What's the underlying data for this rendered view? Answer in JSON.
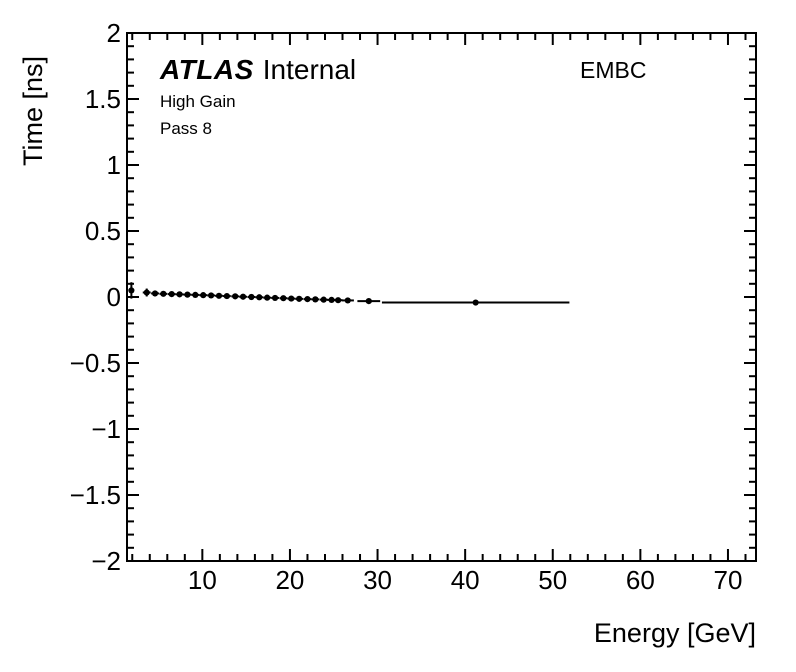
{
  "annotations": {
    "experiment": "ATLAS",
    "status": "Internal",
    "line1": "High Gain",
    "line2": "Pass 8",
    "detector_region": "EMBC"
  },
  "colors": {
    "foreground": "#000000",
    "background": "#ffffff"
  },
  "chart_data": {
    "type": "scatter",
    "title": "",
    "xlabel": "Energy [GeV]",
    "ylabel": "Time [ns]",
    "xlim": [
      1.4,
      73.2
    ],
    "ylim": [
      -2,
      2
    ],
    "grid": false,
    "legend": "none",
    "x_major_ticks": [
      10,
      20,
      30,
      40,
      50,
      60,
      70
    ],
    "x_major_tick_labels": [
      "10",
      "20",
      "30",
      "40",
      "50",
      "60",
      "70"
    ],
    "x_minor_step": 2,
    "y_major_ticks": [
      2,
      1.5,
      1,
      0.5,
      0,
      -0.5,
      -1,
      -1.5,
      -2
    ],
    "y_major_tick_labels": [
      "2",
      "1.5",
      "1",
      "0.5",
      "0",
      "−0.5",
      "−1",
      "−1.5",
      "−2"
    ],
    "y_minor_step": 0.1,
    "series": [
      {
        "name": "mean-time-vs-energy",
        "marker": "filled-circle",
        "color": "#000000",
        "points": [
          {
            "e": 1.9,
            "t": 0.05,
            "exl": 0.25,
            "exh": 0.25,
            "ey": 0.062
          },
          {
            "e": 3.65,
            "t": 0.034,
            "exl": 0.45,
            "exh": 0.45,
            "ey": 0.03
          },
          {
            "e": 4.6,
            "t": 0.027,
            "exl": 0.45,
            "exh": 0.45,
            "ey": 0.022
          },
          {
            "e": 5.55,
            "t": 0.024,
            "exl": 0.45,
            "exh": 0.45,
            "ey": 0.02
          },
          {
            "e": 6.5,
            "t": 0.022,
            "exl": 0.45,
            "exh": 0.45,
            "ey": 0.018
          },
          {
            "e": 7.4,
            "t": 0.02,
            "exl": 0.45,
            "exh": 0.45,
            "ey": 0.018
          },
          {
            "e": 8.3,
            "t": 0.018,
            "exl": 0.45,
            "exh": 0.45,
            "ey": 0.016
          },
          {
            "e": 9.2,
            "t": 0.016,
            "exl": 0.45,
            "exh": 0.45,
            "ey": 0.016
          },
          {
            "e": 10.1,
            "t": 0.014,
            "exl": 0.45,
            "exh": 0.45,
            "ey": 0.016
          },
          {
            "e": 11.0,
            "t": 0.012,
            "exl": 0.45,
            "exh": 0.45,
            "ey": 0.015
          },
          {
            "e": 11.9,
            "t": 0.009,
            "exl": 0.45,
            "exh": 0.45,
            "ey": 0.015
          },
          {
            "e": 12.8,
            "t": 0.007,
            "exl": 0.45,
            "exh": 0.45,
            "ey": 0.015
          },
          {
            "e": 13.75,
            "t": 0.005,
            "exl": 0.45,
            "exh": 0.45,
            "ey": 0.015
          },
          {
            "e": 14.65,
            "t": 0.002,
            "exl": 0.45,
            "exh": 0.45,
            "ey": 0.015
          },
          {
            "e": 15.6,
            "t": 0.0,
            "exl": 0.45,
            "exh": 0.45,
            "ey": 0.015
          },
          {
            "e": 16.5,
            "t": -0.002,
            "exl": 0.45,
            "exh": 0.45,
            "ey": 0.015
          },
          {
            "e": 17.4,
            "t": -0.005,
            "exl": 0.45,
            "exh": 0.45,
            "ey": 0.015
          },
          {
            "e": 18.3,
            "t": -0.007,
            "exl": 0.45,
            "exh": 0.45,
            "ey": 0.015
          },
          {
            "e": 19.25,
            "t": -0.009,
            "exl": 0.45,
            "exh": 0.45,
            "ey": 0.015
          },
          {
            "e": 20.15,
            "t": -0.012,
            "exl": 0.45,
            "exh": 0.45,
            "ey": 0.015
          },
          {
            "e": 21.05,
            "t": -0.014,
            "exl": 0.45,
            "exh": 0.45,
            "ey": 0.015
          },
          {
            "e": 22.0,
            "t": -0.016,
            "exl": 0.45,
            "exh": 0.45,
            "ey": 0.015
          },
          {
            "e": 22.9,
            "t": -0.018,
            "exl": 0.45,
            "exh": 0.45,
            "ey": 0.015
          },
          {
            "e": 23.85,
            "t": -0.02,
            "exl": 0.45,
            "exh": 0.45,
            "ey": 0.016
          },
          {
            "e": 24.75,
            "t": -0.022,
            "exl": 0.5,
            "exh": 0.5,
            "ey": 0.016
          },
          {
            "e": 25.5,
            "t": -0.024,
            "exl": 0.5,
            "exh": 0.5,
            "ey": 0.016
          },
          {
            "e": 26.6,
            "t": -0.026,
            "exl": 0.7,
            "exh": 0.7,
            "ey": 0.017
          },
          {
            "e": 29.0,
            "t": -0.031,
            "exl": 1.3,
            "exh": 1.3,
            "ey": 0.015
          },
          {
            "e": 41.2,
            "t": -0.042,
            "exl": 10.7,
            "exh": 10.7,
            "ey": 0.013
          }
        ]
      }
    ]
  }
}
